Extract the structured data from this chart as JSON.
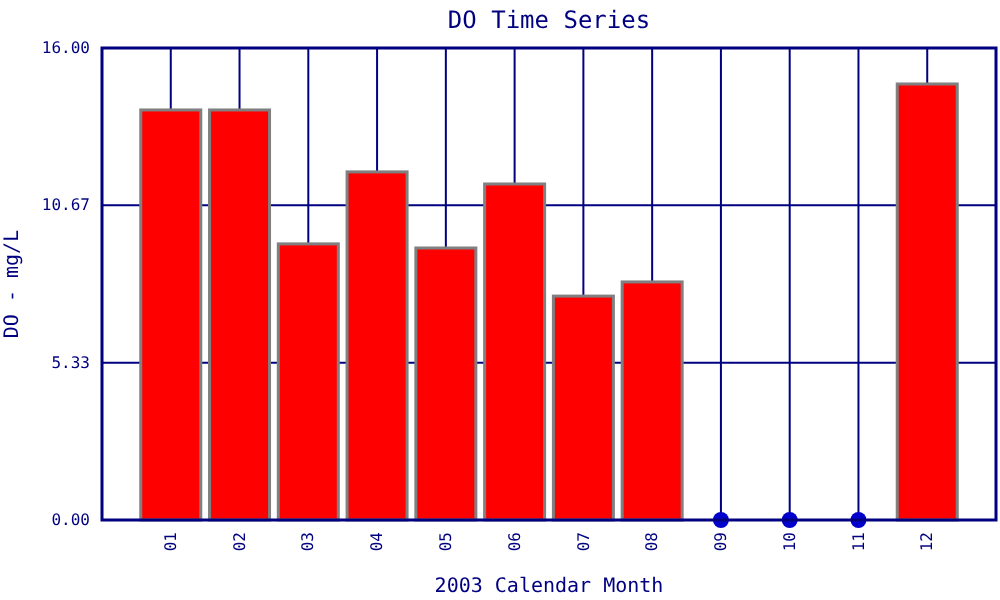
{
  "chart_data": {
    "type": "bar",
    "title": "DO Time Series",
    "xlabel": "2003 Calendar Month",
    "ylabel": "DO - mg/L",
    "categories": [
      "01",
      "02",
      "03",
      "04",
      "05",
      "06",
      "07",
      "08",
      "09",
      "10",
      "11",
      "12"
    ],
    "series": [
      {
        "color": "#ff0000",
        "values": [
          13.9,
          13.9,
          9.36,
          11.8,
          9.22,
          11.39,
          7.59,
          8.07,
          null,
          null,
          null,
          14.78
        ]
      },
      {
        "type": "scatter",
        "color": "#0000cc",
        "x": [
          "09",
          "10",
          "11"
        ],
        "values": [
          0,
          0,
          0
        ]
      }
    ],
    "ylim": [
      0,
      16
    ],
    "yticks": [
      {
        "value": 0,
        "label": "0.00"
      },
      {
        "value": 5.333,
        "label": "5.33"
      },
      {
        "value": 10.667,
        "label": "10.67"
      },
      {
        "value": 16,
        "label": "16.00"
      }
    ],
    "grid": true,
    "marker": "circle"
  }
}
